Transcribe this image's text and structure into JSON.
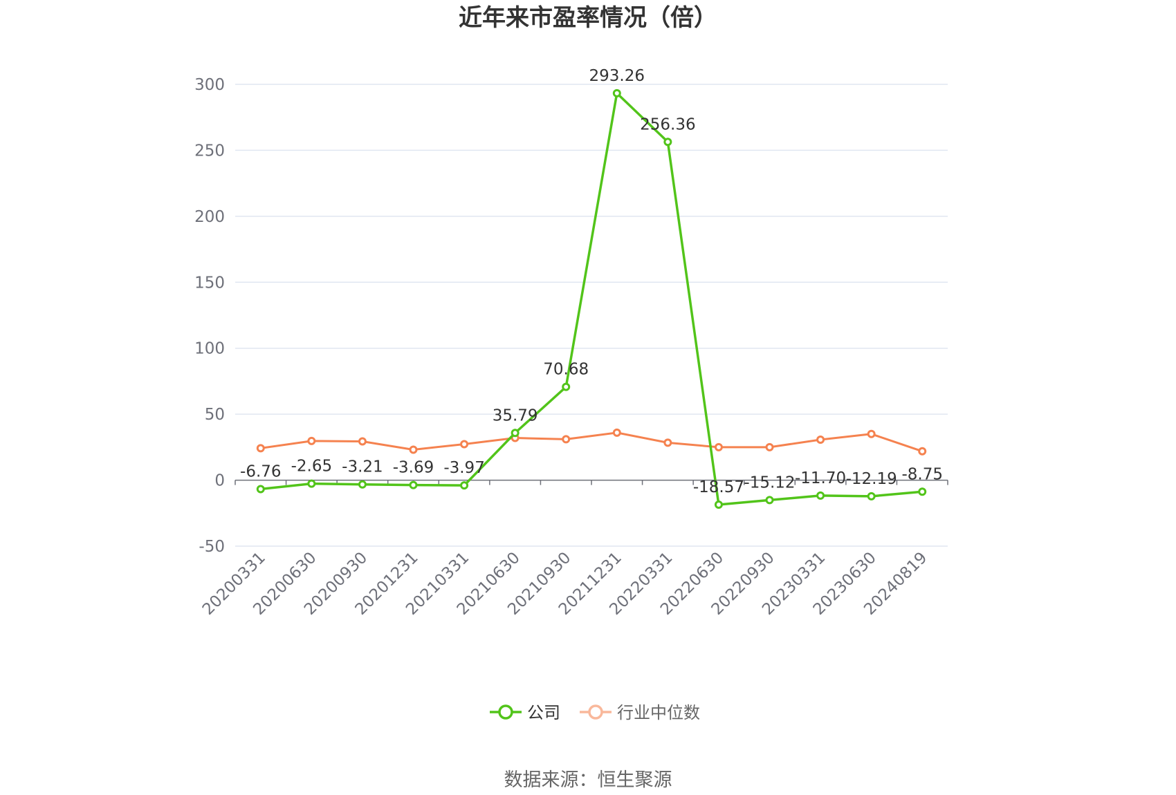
{
  "chart_data": {
    "type": "line",
    "title": "近年来市盈率情况（倍）",
    "xlabel": "",
    "ylabel": "",
    "ylim": [
      -50,
      300
    ],
    "yticks": [
      -50,
      0,
      50,
      100,
      150,
      200,
      250,
      300
    ],
    "grid": true,
    "legend_position": "bottom-center",
    "categories": [
      "20200331",
      "20200630",
      "20200930",
      "20201231",
      "20210331",
      "20210630",
      "20210930",
      "20211231",
      "20220331",
      "20220630",
      "20220930",
      "20230331",
      "20230630",
      "20240819"
    ],
    "series": [
      {
        "name": "公司",
        "color": "#52c41a",
        "values": [
          -6.76,
          -2.65,
          -3.21,
          -3.69,
          -3.97,
          35.79,
          70.68,
          293.26,
          256.36,
          -18.57,
          -15.12,
          -11.7,
          -12.19,
          -8.75
        ],
        "labels": [
          "-6.76",
          "-2.65",
          "-3.21",
          "-3.69",
          "-3.97",
          "35.79",
          "70.68",
          "293.26",
          "256.36",
          "-18.57",
          "-15.12",
          "-11.70",
          "-12.19",
          "-8.75"
        ]
      },
      {
        "name": "行业中位数",
        "color": "#f5824f",
        "values": [
          24.2,
          29.7,
          29.4,
          23.1,
          27.3,
          32.0,
          31.0,
          36.0,
          28.4,
          25.0,
          25.0,
          30.7,
          35.0,
          21.9
        ]
      }
    ],
    "legend_colors": {
      "公司": "#52c41a",
      "行业中位数": "#f9b89b"
    }
  },
  "source_text": "数据来源：恒生聚源"
}
